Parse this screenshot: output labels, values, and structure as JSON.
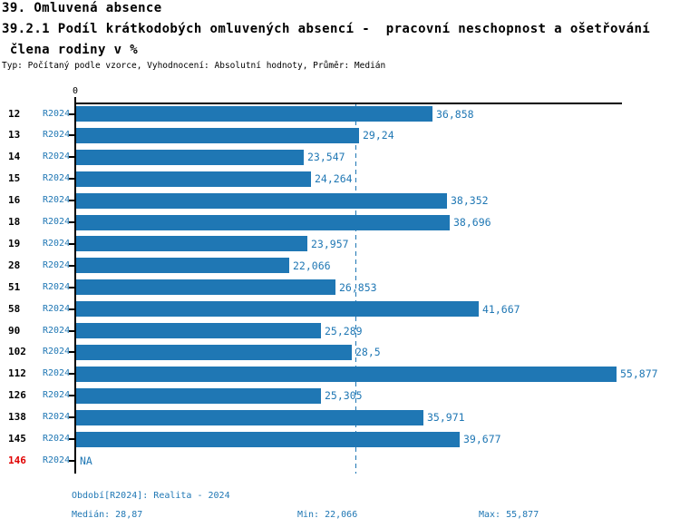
{
  "header": {
    "title": "39. Omluvená absence",
    "subtitle_line1": "39.2.1 Podíl krátkodobých omluvených absencí -  pracovní neschopnost a ošetřování",
    "subtitle_line2": " člena rodiny v %",
    "meta": "Typ: Počítaný podle vzorce, Vyhodnocení: Absolutní hodnoty, Průměr: Medián"
  },
  "axis": {
    "zero_label": "0"
  },
  "chart_data": {
    "type": "bar",
    "orientation": "horizontal",
    "series_name": "R2024",
    "categories": [
      "12",
      "13",
      "14",
      "15",
      "16",
      "18",
      "19",
      "28",
      "51",
      "58",
      "90",
      "102",
      "112",
      "126",
      "138",
      "145",
      "146"
    ],
    "values": [
      36.858,
      29.24,
      23.547,
      24.264,
      38.352,
      38.696,
      23.957,
      22.066,
      26.853,
      41.667,
      25.289,
      28.5,
      55.877,
      25.305,
      35.971,
      39.677,
      null
    ],
    "value_labels": [
      "36,858",
      "29,24",
      "23,547",
      "24,264",
      "38,352",
      "38,696",
      "23,957",
      "22,066",
      "26,853",
      "41,667",
      "25,289",
      "28,5",
      "55,877",
      "25,305",
      "35,971",
      "39,677",
      "NA"
    ],
    "highlight_category": "146",
    "median": 28.87,
    "min": 22.066,
    "max": 55.877,
    "xlim": [
      0,
      56.5
    ],
    "median_line": true,
    "grid": false,
    "legend": false
  },
  "footer": {
    "period": "Období[R2024]: Realita - 2024",
    "median": "Medián: 28,87",
    "min": "Min: 22,066",
    "max": "Max: 55,877"
  },
  "colors": {
    "bar": "#1f77b4",
    "text_blue": "#1f77b4",
    "highlight_red": "#e00000",
    "axis_black": "#000000"
  }
}
